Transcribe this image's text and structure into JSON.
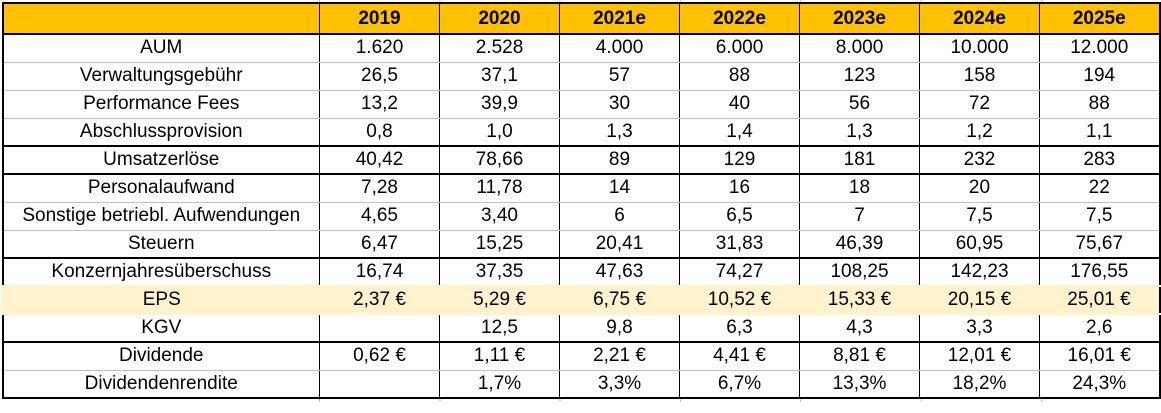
{
  "chart_data": {
    "type": "table",
    "columns": [
      "",
      "2019",
      "2020",
      "2021e",
      "2022e",
      "2023e",
      "2024e",
      "2025e"
    ],
    "rows": [
      {
        "label": "AUM",
        "values": [
          "1.620",
          "2.528",
          "4.000",
          "6.000",
          "8.000",
          "10.000",
          "12.000"
        ]
      },
      {
        "label": "Verwaltungsgebühr",
        "values": [
          "26,5",
          "37,1",
          "57",
          "88",
          "123",
          "158",
          "194"
        ]
      },
      {
        "label": "Performance Fees",
        "values": [
          "13,2",
          "39,9",
          "30",
          "40",
          "56",
          "72",
          "88"
        ]
      },
      {
        "label": "Abschlussprovision",
        "values": [
          "0,8",
          "1,0",
          "1,3",
          "1,4",
          "1,3",
          "1,2",
          "1,1"
        ]
      },
      {
        "label": "Umsatzerlöse",
        "values": [
          "40,42",
          "78,66",
          "89",
          "129",
          "181",
          "232",
          "283"
        ]
      },
      {
        "label": "Personalaufwand",
        "values": [
          "7,28",
          "11,78",
          "14",
          "16",
          "18",
          "20",
          "22"
        ]
      },
      {
        "label": "Sonstige betriebl. Aufwendungen",
        "values": [
          "4,65",
          "3,40",
          "6",
          "6,5",
          "7",
          "7,5",
          "7,5"
        ]
      },
      {
        "label": "Steuern",
        "values": [
          "6,47",
          "15,25",
          "20,41",
          "31,83",
          "46,39",
          "60,95",
          "75,67"
        ]
      },
      {
        "label": "Konzernjahresüberschuss",
        "values": [
          "16,74",
          "37,35",
          "47,63",
          "74,27",
          "108,25",
          "142,23",
          "176,55"
        ]
      },
      {
        "label": "EPS",
        "values": [
          "2,37 €",
          "5,29 €",
          "6,75 €",
          "10,52 €",
          "15,33 €",
          "20,15 €",
          "25,01 €"
        ]
      },
      {
        "label": "KGV",
        "values": [
          "",
          "12,5",
          "9,8",
          "6,3",
          "4,3",
          "3,3",
          "2,6"
        ]
      },
      {
        "label": "Dividende",
        "values": [
          "0,62 €",
          "1,11 €",
          "2,21 €",
          "4,41 €",
          "8,81 €",
          "12,01 €",
          "16,01 €"
        ]
      },
      {
        "label": "Dividendenrendite",
        "values": [
          "",
          "1,7%",
          "3,3%",
          "6,7%",
          "13,3%",
          "18,2%",
          "24,3%"
        ]
      }
    ]
  },
  "colors": {
    "header_bg": "#FFC000",
    "eps_row_bg": "#FFF2CC",
    "gridline": "#C0C0C0",
    "border": "#000000"
  }
}
